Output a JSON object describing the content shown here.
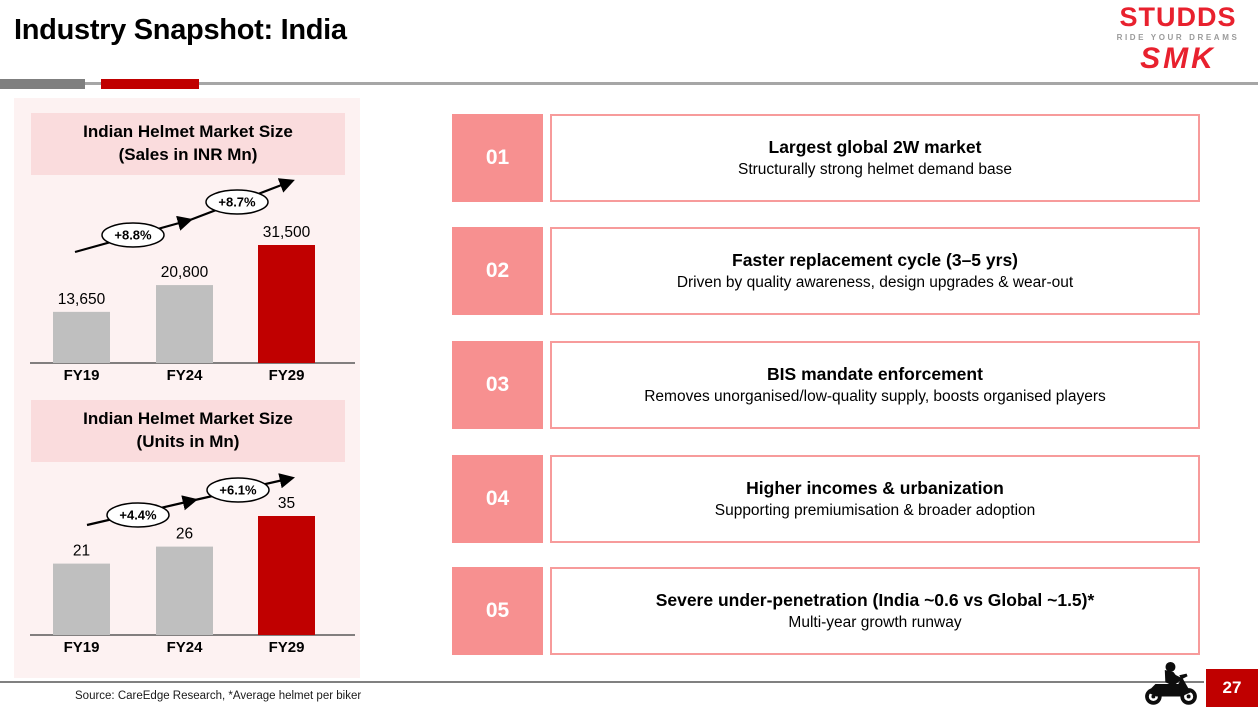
{
  "slide": {
    "title": "Industry Snapshot: India",
    "page_number": "27",
    "source_note": "Source: CareEdge Research, *Average helmet per biker"
  },
  "logo": {
    "brand": "STUDDS",
    "tagline": "RIDE YOUR DREAMS",
    "sub_brand": "SMK"
  },
  "colors": {
    "accent_red": "#C00000",
    "salmon_number_box": "#F79090",
    "item_border_pink": "#F79B9B",
    "panel_pink": "#FDF2F2",
    "chart_title_box_pink": "#FADCDD",
    "bar_gray": "#BFBFBF",
    "logo_red": "#E8212E",
    "divider_gray": "#7F7F7F"
  },
  "chart_data": [
    {
      "type": "bar",
      "title": "Indian Helmet Market Size",
      "subtitle": "(Sales in INR Mn)",
      "categories": [
        "FY19",
        "FY24",
        "FY29"
      ],
      "values": [
        13650,
        20800,
        31500
      ],
      "value_labels": [
        "13,650",
        "20,800",
        "31,500"
      ],
      "growth_annotations": [
        "+8.8%",
        "+8.7%"
      ],
      "bar_colors": [
        "#BFBFBF",
        "#BFBFBF",
        "#C00000"
      ],
      "xlabel": "",
      "ylabel": "",
      "ylim": [
        0,
        33000
      ],
      "grid": false,
      "legend": false,
      "annotation_style": "upward trend arrow with ellipse CAGR badges"
    },
    {
      "type": "bar",
      "title": "Indian Helmet Market Size",
      "subtitle": "(Units in Mn)",
      "categories": [
        "FY19",
        "FY24",
        "FY29"
      ],
      "values": [
        21,
        26,
        35
      ],
      "value_labels": [
        "21",
        "26",
        "35"
      ],
      "growth_annotations": [
        "+4.4%",
        "+6.1%"
      ],
      "bar_colors": [
        "#BFBFBF",
        "#BFBFBF",
        "#C00000"
      ],
      "xlabel": "",
      "ylabel": "",
      "ylim": [
        0,
        37
      ],
      "grid": false,
      "legend": false,
      "annotation_style": "upward trend arrow with ellipse CAGR badges"
    }
  ],
  "items": [
    {
      "number": "01",
      "title": "Largest global 2W market",
      "subtitle": "Structurally strong helmet demand base"
    },
    {
      "number": "02",
      "title": "Faster replacement cycle (3–5 yrs)",
      "subtitle": "Driven by quality awareness, design upgrades & wear-out"
    },
    {
      "number": "03",
      "title": "BIS mandate enforcement",
      "subtitle": "Removes unorganised/low-quality supply, boosts organised players"
    },
    {
      "number": "04",
      "title": "Higher incomes & urbanization",
      "subtitle": "Supporting premiumisation & broader adoption"
    },
    {
      "number": "05",
      "title": "Severe under-penetration (India ~0.6 vs Global ~1.5)*",
      "subtitle": "Multi-year growth runway"
    }
  ]
}
